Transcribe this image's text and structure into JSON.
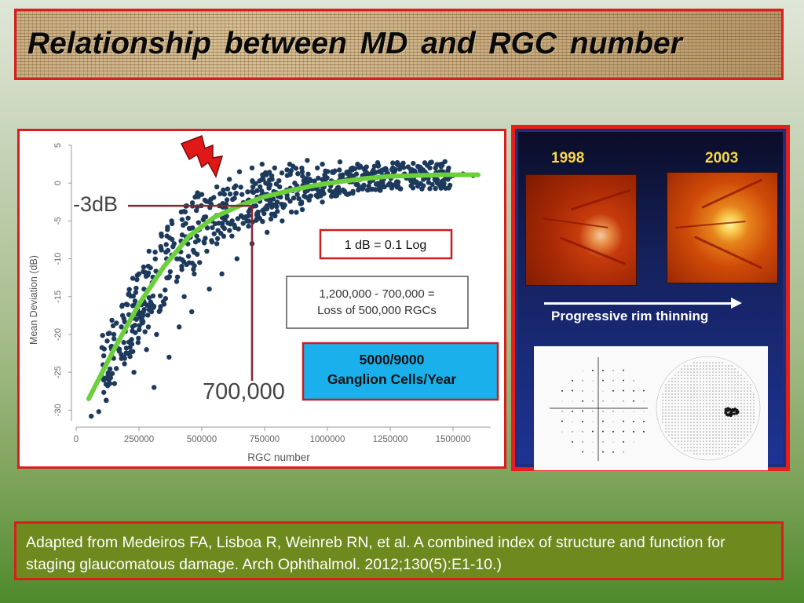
{
  "title": "Relationship  between  MD  and  RGC  number",
  "chart_data": {
    "type": "scatter",
    "title": "",
    "xlabel": "RGC number",
    "ylabel": "Mean Deviation (dB)",
    "xlim": [
      0,
      1650000
    ],
    "ylim": [
      -31,
      5
    ],
    "x_ticks": [
      "0",
      "250000",
      "500000",
      "750000",
      "1000000",
      "1250000",
      "1500000"
    ],
    "y_ticks": [
      "5",
      "0",
      "-5",
      "-10",
      "-15",
      "-20",
      "-25",
      "-30"
    ],
    "fit_curve": {
      "x": [
        50000,
        150000,
        250000,
        350000,
        450000,
        550000,
        650000,
        750000,
        850000,
        950000,
        1050000,
        1150000,
        1250000,
        1350000,
        1450000,
        1550000,
        1600000
      ],
      "y": [
        -28.5,
        -22,
        -16,
        -11,
        -7,
        -4.5,
        -3,
        -1.8,
        -1.0,
        -0.3,
        0.2,
        0.6,
        0.9,
        1.0,
        1.1,
        1.1,
        1.1
      ]
    },
    "scatter_points": [
      [
        60000,
        -30.8
      ],
      [
        90000,
        -30.2
      ],
      [
        130000,
        -26
      ],
      [
        160000,
        -24.5
      ],
      [
        190000,
        -23
      ],
      [
        180000,
        -19
      ],
      [
        210000,
        -21
      ],
      [
        240000,
        -18
      ],
      [
        270000,
        -14
      ],
      [
        300000,
        -17
      ],
      [
        330000,
        -12
      ],
      [
        360000,
        -10
      ],
      [
        390000,
        -8
      ],
      [
        420000,
        -11
      ],
      [
        450000,
        -6
      ],
      [
        480000,
        -7
      ],
      [
        510000,
        -4.5
      ],
      [
        540000,
        -5
      ],
      [
        570000,
        -3
      ],
      [
        600000,
        -3.5
      ],
      [
        630000,
        -2
      ],
      [
        660000,
        -1.5
      ],
      [
        690000,
        -2.5
      ],
      [
        720000,
        -1
      ],
      [
        750000,
        -1.5
      ],
      [
        780000,
        0.5
      ],
      [
        810000,
        -0.5
      ],
      [
        840000,
        1
      ],
      [
        870000,
        0
      ],
      [
        900000,
        1.5
      ],
      [
        930000,
        0.5
      ],
      [
        960000,
        2
      ],
      [
        990000,
        1
      ],
      [
        1020000,
        1.5
      ],
      [
        1060000,
        0.5
      ],
      [
        1100000,
        2
      ],
      [
        1140000,
        1
      ],
      [
        1180000,
        1.5
      ],
      [
        1220000,
        0
      ],
      [
        1260000,
        2
      ],
      [
        1300000,
        1
      ],
      [
        1340000,
        0.5
      ],
      [
        1380000,
        1.5
      ],
      [
        1420000,
        1
      ],
      [
        1460000,
        1.5
      ],
      [
        1500000,
        1
      ],
      [
        1540000,
        1.2
      ],
      [
        1580000,
        1
      ],
      [
        230000,
        -25
      ],
      [
        280000,
        -22
      ],
      [
        320000,
        -20
      ],
      [
        350000,
        -16
      ],
      [
        400000,
        -13
      ],
      [
        430000,
        -15
      ],
      [
        470000,
        -12
      ],
      [
        520000,
        -9
      ],
      [
        560000,
        -8
      ],
      [
        590000,
        -6
      ],
      [
        620000,
        -7
      ],
      [
        680000,
        -5
      ],
      [
        720000,
        -4
      ],
      [
        760000,
        -3
      ],
      [
        800000,
        -2.5
      ],
      [
        840000,
        -2
      ],
      [
        880000,
        -1.5
      ],
      [
        920000,
        -1
      ],
      [
        150000,
        -20
      ],
      [
        200000,
        -16
      ],
      [
        250000,
        -12
      ],
      [
        290000,
        -9
      ],
      [
        340000,
        -7
      ],
      [
        380000,
        -5
      ],
      [
        440000,
        -3
      ],
      [
        500000,
        -1.5
      ],
      [
        560000,
        -0.5
      ],
      [
        610000,
        0.5
      ],
      [
        650000,
        1.5
      ],
      [
        700000,
        2
      ],
      [
        740000,
        2.5
      ],
      [
        790000,
        2
      ],
      [
        850000,
        2.5
      ],
      [
        920000,
        3
      ],
      [
        980000,
        2.5
      ],
      [
        1050000,
        2.8
      ],
      [
        1120000,
        2.5
      ],
      [
        1200000,
        2.7
      ],
      [
        1280000,
        2.4
      ],
      [
        1360000,
        2.2
      ],
      [
        310000,
        -27
      ],
      [
        370000,
        -23
      ],
      [
        410000,
        -19
      ],
      [
        460000,
        -17
      ],
      [
        530000,
        -14
      ],
      [
        580000,
        -12
      ],
      [
        640000,
        -10
      ],
      [
        700000,
        -8
      ],
      [
        760000,
        -6.5
      ],
      [
        820000,
        -5
      ],
      [
        900000,
        -3.5
      ],
      [
        980000,
        -2.5
      ],
      [
        1080000,
        -1.5
      ],
      [
        1180000,
        -0.8
      ]
    ],
    "reference": {
      "label_md": "-3dB",
      "label_rgc": "700,000",
      "md": -3,
      "rgc": 700000
    }
  },
  "notes": {
    "log_box": "1 dB = 0.1 Log",
    "loss_line1": "1,200,000 - 700,000 =",
    "loss_line2": "Loss of 500,000 RGCs",
    "rate_line1": "5000/9000",
    "rate_line2": "Ganglion Cells/Year"
  },
  "right_panel": {
    "year_left": "1998",
    "year_right": "2003",
    "arrow_label": "Progressive rim thinning"
  },
  "citation": "Adapted from Medeiros FA, Lisboa R, Weinreb RN, et al. A combined index of structure and function for staging glaucomatous damage.  Arch Ophthalmol. 2012;130(5):E1-10.)",
  "colors": {
    "accent_red": "#d81e1e",
    "point_blue": "#1d3a5c",
    "fit_green": "#6ccf3c",
    "ref_line": "#8b2232",
    "cyan_box": "#1ab0ec"
  }
}
